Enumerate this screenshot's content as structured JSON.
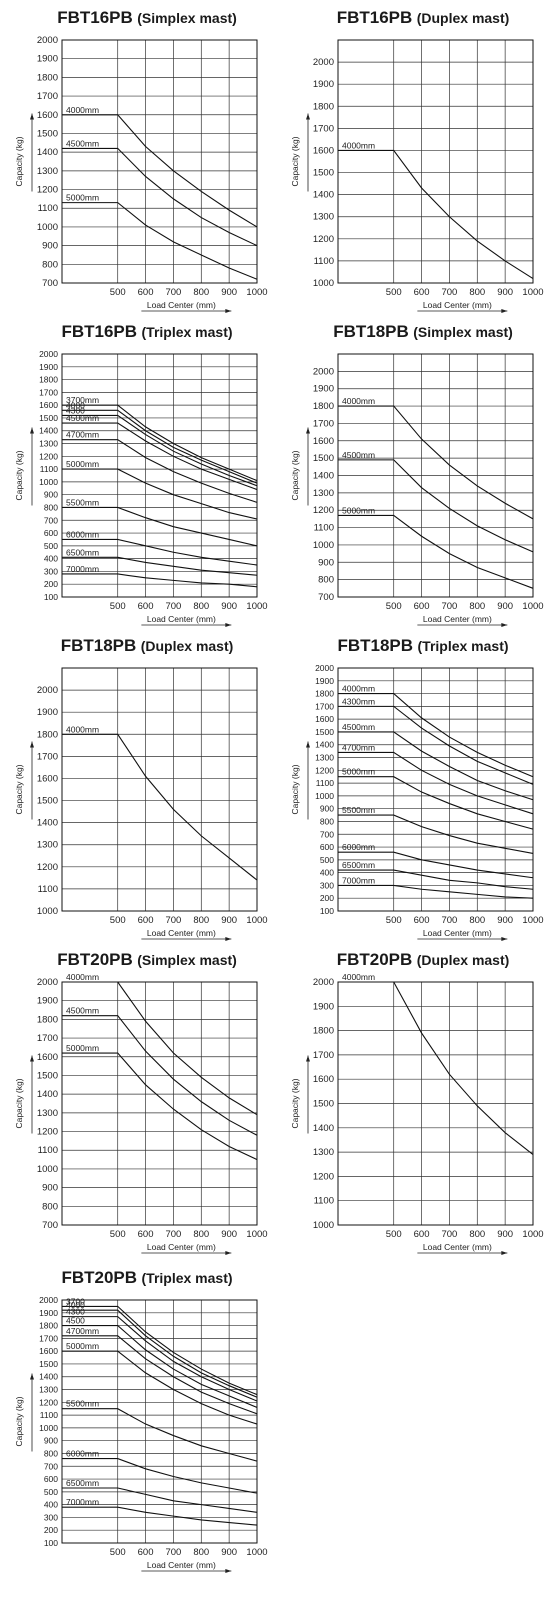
{
  "chart_data": [
    {
      "type": "line",
      "model": "FBT16PB",
      "mast": "(Simplex mast)",
      "xlabel": "Load Center  (mm)",
      "ylabel": "Capacity  (kg)",
      "x_ticks": [
        500,
        600,
        700,
        800,
        900,
        1000
      ],
      "xlim": [
        300,
        1000
      ],
      "ylim": [
        700,
        2000
      ],
      "y_ticks": [
        700,
        800,
        900,
        1000,
        1100,
        1200,
        1300,
        1400,
        1500,
        1600,
        1700,
        1800,
        1900,
        2000
      ],
      "grid": true,
      "series": [
        {
          "name": "4000mm",
          "label": "4000mm",
          "flat": 1600,
          "values": [
            1600,
            1430,
            1300,
            1190,
            1090,
            1000
          ]
        },
        {
          "name": "4500mm",
          "label": "4500mm",
          "flat": 1420,
          "values": [
            1420,
            1270,
            1150,
            1050,
            970,
            900
          ]
        },
        {
          "name": "5000mm",
          "label": "5000mm",
          "flat": 1130,
          "values": [
            1130,
            1010,
            920,
            850,
            780,
            720
          ]
        }
      ]
    },
    {
      "type": "line",
      "model": "FBT16PB",
      "mast": "(Duplex mast)",
      "xlabel": "Load Center  (mm)",
      "ylabel": "Capacity  (kg)",
      "x_ticks": [
        500,
        600,
        700,
        800,
        900,
        1000
      ],
      "xlim": [
        300,
        1000
      ],
      "ylim": [
        1000,
        2100
      ],
      "y_ticks": [
        1000,
        1100,
        1200,
        1300,
        1400,
        1500,
        1600,
        1700,
        1800,
        1900,
        2000
      ],
      "grid": true,
      "series": [
        {
          "name": "4000mm",
          "label": "4000mm",
          "flat": 1600,
          "values": [
            1600,
            1430,
            1300,
            1190,
            1100,
            1020
          ]
        }
      ]
    },
    {
      "type": "line",
      "model": "FBT16PB",
      "mast": "(Triplex mast)",
      "xlabel": "Load Center  (mm)",
      "ylabel": "Capacity  (kg)",
      "x_ticks": [
        500,
        600,
        700,
        800,
        900,
        1000
      ],
      "xlim": [
        300,
        1000
      ],
      "ylim": [
        100,
        2000
      ],
      "y_ticks": [
        100,
        200,
        300,
        400,
        500,
        600,
        700,
        800,
        900,
        1000,
        1100,
        1200,
        1300,
        1400,
        1500,
        1600,
        1700,
        1800,
        1900,
        2000
      ],
      "grid": true,
      "series": [
        {
          "name": "3700mm",
          "label": "3700mm",
          "flat": 1600,
          "values": [
            1600,
            1430,
            1300,
            1190,
            1100,
            1010
          ]
        },
        {
          "name": "4000",
          "label": "4000",
          "flat": 1560,
          "values": [
            1560,
            1400,
            1270,
            1170,
            1080,
            990
          ]
        },
        {
          "name": "4300",
          "label": "4300",
          "flat": 1520,
          "values": [
            1520,
            1370,
            1240,
            1140,
            1050,
            970
          ]
        },
        {
          "name": "4500mm",
          "label": "4500mm",
          "flat": 1460,
          "values": [
            1460,
            1320,
            1200,
            1100,
            1020,
            940
          ]
        },
        {
          "name": "4700mm",
          "label": "4700mm",
          "flat": 1330,
          "values": [
            1330,
            1190,
            1080,
            990,
            910,
            840
          ]
        },
        {
          "name": "5000mm",
          "label": "5000mm",
          "flat": 1100,
          "values": [
            1100,
            990,
            900,
            830,
            760,
            710
          ]
        },
        {
          "name": "5500mm",
          "label": "5500mm",
          "flat": 800,
          "values": [
            800,
            720,
            650,
            600,
            550,
            500
          ]
        },
        {
          "name": "6000mm",
          "label": "6000mm",
          "flat": 550,
          "values": [
            550,
            500,
            450,
            410,
            380,
            350
          ]
        },
        {
          "name": "6500mm",
          "label": "6500mm",
          "flat": 410,
          "values": [
            410,
            370,
            340,
            310,
            290,
            270
          ]
        },
        {
          "name": "7000mm",
          "label": "7000mm",
          "flat": 280,
          "values": [
            280,
            250,
            230,
            210,
            200,
            180
          ]
        }
      ]
    },
    {
      "type": "line",
      "model": "FBT18PB",
      "mast": "(Simplex mast)",
      "xlabel": "Load Center  (mm)",
      "ylabel": "Capacity  (kg)",
      "x_ticks": [
        500,
        600,
        700,
        800,
        900,
        1000
      ],
      "xlim": [
        300,
        1000
      ],
      "ylim": [
        700,
        2100
      ],
      "y_ticks": [
        700,
        800,
        900,
        1000,
        1100,
        1200,
        1300,
        1400,
        1500,
        1600,
        1700,
        1800,
        1900,
        2000
      ],
      "grid": true,
      "series": [
        {
          "name": "4000mm",
          "label": "4000mm",
          "flat": 1800,
          "values": [
            1800,
            1610,
            1460,
            1340,
            1240,
            1150
          ]
        },
        {
          "name": "4500mm",
          "label": "4500mm",
          "flat": 1490,
          "values": [
            1490,
            1330,
            1210,
            1110,
            1030,
            960
          ]
        },
        {
          "name": "5000mm",
          "label": "5000mm",
          "flat": 1170,
          "values": [
            1170,
            1050,
            950,
            870,
            810,
            750
          ]
        }
      ]
    },
    {
      "type": "line",
      "model": "FBT18PB",
      "mast": "(Duplex mast)",
      "xlabel": "Load Center  (mm)",
      "ylabel": "Capacity  (kg)",
      "x_ticks": [
        500,
        600,
        700,
        800,
        900,
        1000
      ],
      "xlim": [
        300,
        1000
      ],
      "ylim": [
        1000,
        2100
      ],
      "y_ticks": [
        1000,
        1100,
        1200,
        1300,
        1400,
        1500,
        1600,
        1700,
        1800,
        1900,
        2000
      ],
      "grid": true,
      "series": [
        {
          "name": "4000mm",
          "label": "4000mm",
          "flat": 1800,
          "values": [
            1800,
            1610,
            1460,
            1340,
            1240,
            1140
          ]
        }
      ]
    },
    {
      "type": "line",
      "model": "FBT18PB",
      "mast": "(Triplex mast)",
      "xlabel": "Load Center  (mm)",
      "ylabel": "Capacity  (kg)",
      "x_ticks": [
        500,
        600,
        700,
        800,
        900,
        1000
      ],
      "xlim": [
        300,
        1000
      ],
      "ylim": [
        100,
        2000
      ],
      "y_ticks": [
        100,
        200,
        300,
        400,
        500,
        600,
        700,
        800,
        900,
        1000,
        1100,
        1200,
        1300,
        1400,
        1500,
        1600,
        1700,
        1800,
        1900,
        2000
      ],
      "grid": true,
      "series": [
        {
          "name": "4000mm",
          "label": "4000mm",
          "flat": 1800,
          "values": [
            1800,
            1610,
            1460,
            1340,
            1240,
            1150
          ]
        },
        {
          "name": "4300mm",
          "label": "4300mm",
          "flat": 1700,
          "values": [
            1700,
            1530,
            1390,
            1270,
            1180,
            1090
          ]
        },
        {
          "name": "4500mm",
          "label": "4500mm",
          "flat": 1500,
          "values": [
            1500,
            1350,
            1230,
            1120,
            1040,
            970
          ]
        },
        {
          "name": "4700mm",
          "label": "4700mm",
          "flat": 1340,
          "values": [
            1340,
            1200,
            1090,
            1000,
            930,
            860
          ]
        },
        {
          "name": "5000mm",
          "label": "5000mm",
          "flat": 1150,
          "values": [
            1150,
            1030,
            940,
            860,
            800,
            740
          ]
        },
        {
          "name": "5500mm",
          "label": "5500mm",
          "flat": 850,
          "values": [
            850,
            760,
            690,
            630,
            590,
            550
          ]
        },
        {
          "name": "6000mm",
          "label": "6000mm",
          "flat": 560,
          "values": [
            560,
            500,
            460,
            420,
            390,
            360
          ]
        },
        {
          "name": "6500mm",
          "label": "6500mm",
          "flat": 420,
          "values": [
            420,
            380,
            340,
            320,
            290,
            270
          ]
        },
        {
          "name": "7000mm",
          "label": "7000mm",
          "flat": 300,
          "values": [
            300,
            270,
            250,
            230,
            210,
            200
          ]
        }
      ]
    },
    {
      "type": "line",
      "model": "FBT20PB",
      "mast": "(Simplex mast)",
      "xlabel": "Load Center  (mm)",
      "ylabel": "Capacity  (kg)",
      "x_ticks": [
        500,
        600,
        700,
        800,
        900,
        1000
      ],
      "xlim": [
        300,
        1000
      ],
      "ylim": [
        700,
        2000
      ],
      "y_ticks": [
        700,
        800,
        900,
        1000,
        1100,
        1200,
        1300,
        1400,
        1500,
        1600,
        1700,
        1800,
        1900,
        2000
      ],
      "grid": true,
      "series": [
        {
          "name": "4000mm",
          "label": "4000mm",
          "flat": 2000,
          "values": [
            2000,
            1790,
            1620,
            1490,
            1380,
            1290
          ]
        },
        {
          "name": "4500mm",
          "label": "4500mm",
          "flat": 1820,
          "values": [
            1820,
            1630,
            1480,
            1360,
            1260,
            1180
          ]
        },
        {
          "name": "5000mm",
          "label": "5000mm",
          "flat": 1620,
          "values": [
            1620,
            1450,
            1320,
            1210,
            1120,
            1050
          ]
        }
      ]
    },
    {
      "type": "line",
      "model": "FBT20PB",
      "mast": "(Duplex mast)",
      "xlabel": "Load Center  (mm)",
      "ylabel": "Capacity  (kg)",
      "x_ticks": [
        500,
        600,
        700,
        800,
        900,
        1000
      ],
      "xlim": [
        300,
        1000
      ],
      "ylim": [
        1000,
        2000
      ],
      "y_ticks": [
        1000,
        1100,
        1200,
        1300,
        1400,
        1500,
        1600,
        1700,
        1800,
        1900,
        2000
      ],
      "grid": true,
      "series": [
        {
          "name": "4000mm",
          "label": "4000mm",
          "flat": 2000,
          "values": [
            2000,
            1790,
            1620,
            1490,
            1380,
            1290
          ]
        }
      ]
    },
    {
      "type": "line",
      "model": "FBT20PB",
      "mast": "(Triplex mast)",
      "xlabel": "Load Center  (mm)",
      "ylabel": "Capacity  (kg)",
      "x_ticks": [
        500,
        600,
        700,
        800,
        900,
        1000
      ],
      "xlim": [
        300,
        1000
      ],
      "ylim": [
        100,
        2000
      ],
      "y_ticks": [
        100,
        200,
        300,
        400,
        500,
        600,
        700,
        800,
        900,
        1000,
        1100,
        1200,
        1300,
        1400,
        1500,
        1600,
        1700,
        1800,
        1900,
        2000
      ],
      "grid": true,
      "series": [
        {
          "name": "3700",
          "label": "3700",
          "flat": 1950,
          "values": [
            1950,
            1750,
            1590,
            1460,
            1350,
            1260
          ]
        },
        {
          "name": "4000",
          "label": "4000",
          "flat": 1920,
          "values": [
            1920,
            1720,
            1560,
            1430,
            1330,
            1240
          ]
        },
        {
          "name": "4300",
          "label": "4300",
          "flat": 1870,
          "values": [
            1870,
            1680,
            1520,
            1400,
            1300,
            1210
          ]
        },
        {
          "name": "4500",
          "label": "4500",
          "flat": 1800,
          "values": [
            1800,
            1610,
            1460,
            1340,
            1250,
            1160
          ]
        },
        {
          "name": "4700mm",
          "label": "4700mm",
          "flat": 1720,
          "values": [
            1720,
            1540,
            1400,
            1280,
            1190,
            1110
          ]
        },
        {
          "name": "5000mm",
          "label": "5000mm",
          "flat": 1600,
          "values": [
            1600,
            1430,
            1300,
            1190,
            1100,
            1030
          ]
        },
        {
          "name": "5500mm",
          "label": "5500mm",
          "flat": 1150,
          "values": [
            1150,
            1030,
            940,
            860,
            800,
            740
          ]
        },
        {
          "name": "6000mm",
          "label": "6000mm",
          "flat": 760,
          "values": [
            760,
            680,
            620,
            570,
            530,
            490
          ]
        },
        {
          "name": "6500mm",
          "label": "6500mm",
          "flat": 530,
          "values": [
            530,
            480,
            430,
            400,
            370,
            340
          ]
        },
        {
          "name": "7000mm",
          "label": "7000mm",
          "flat": 380,
          "values": [
            380,
            340,
            310,
            280,
            260,
            240
          ]
        }
      ]
    }
  ]
}
